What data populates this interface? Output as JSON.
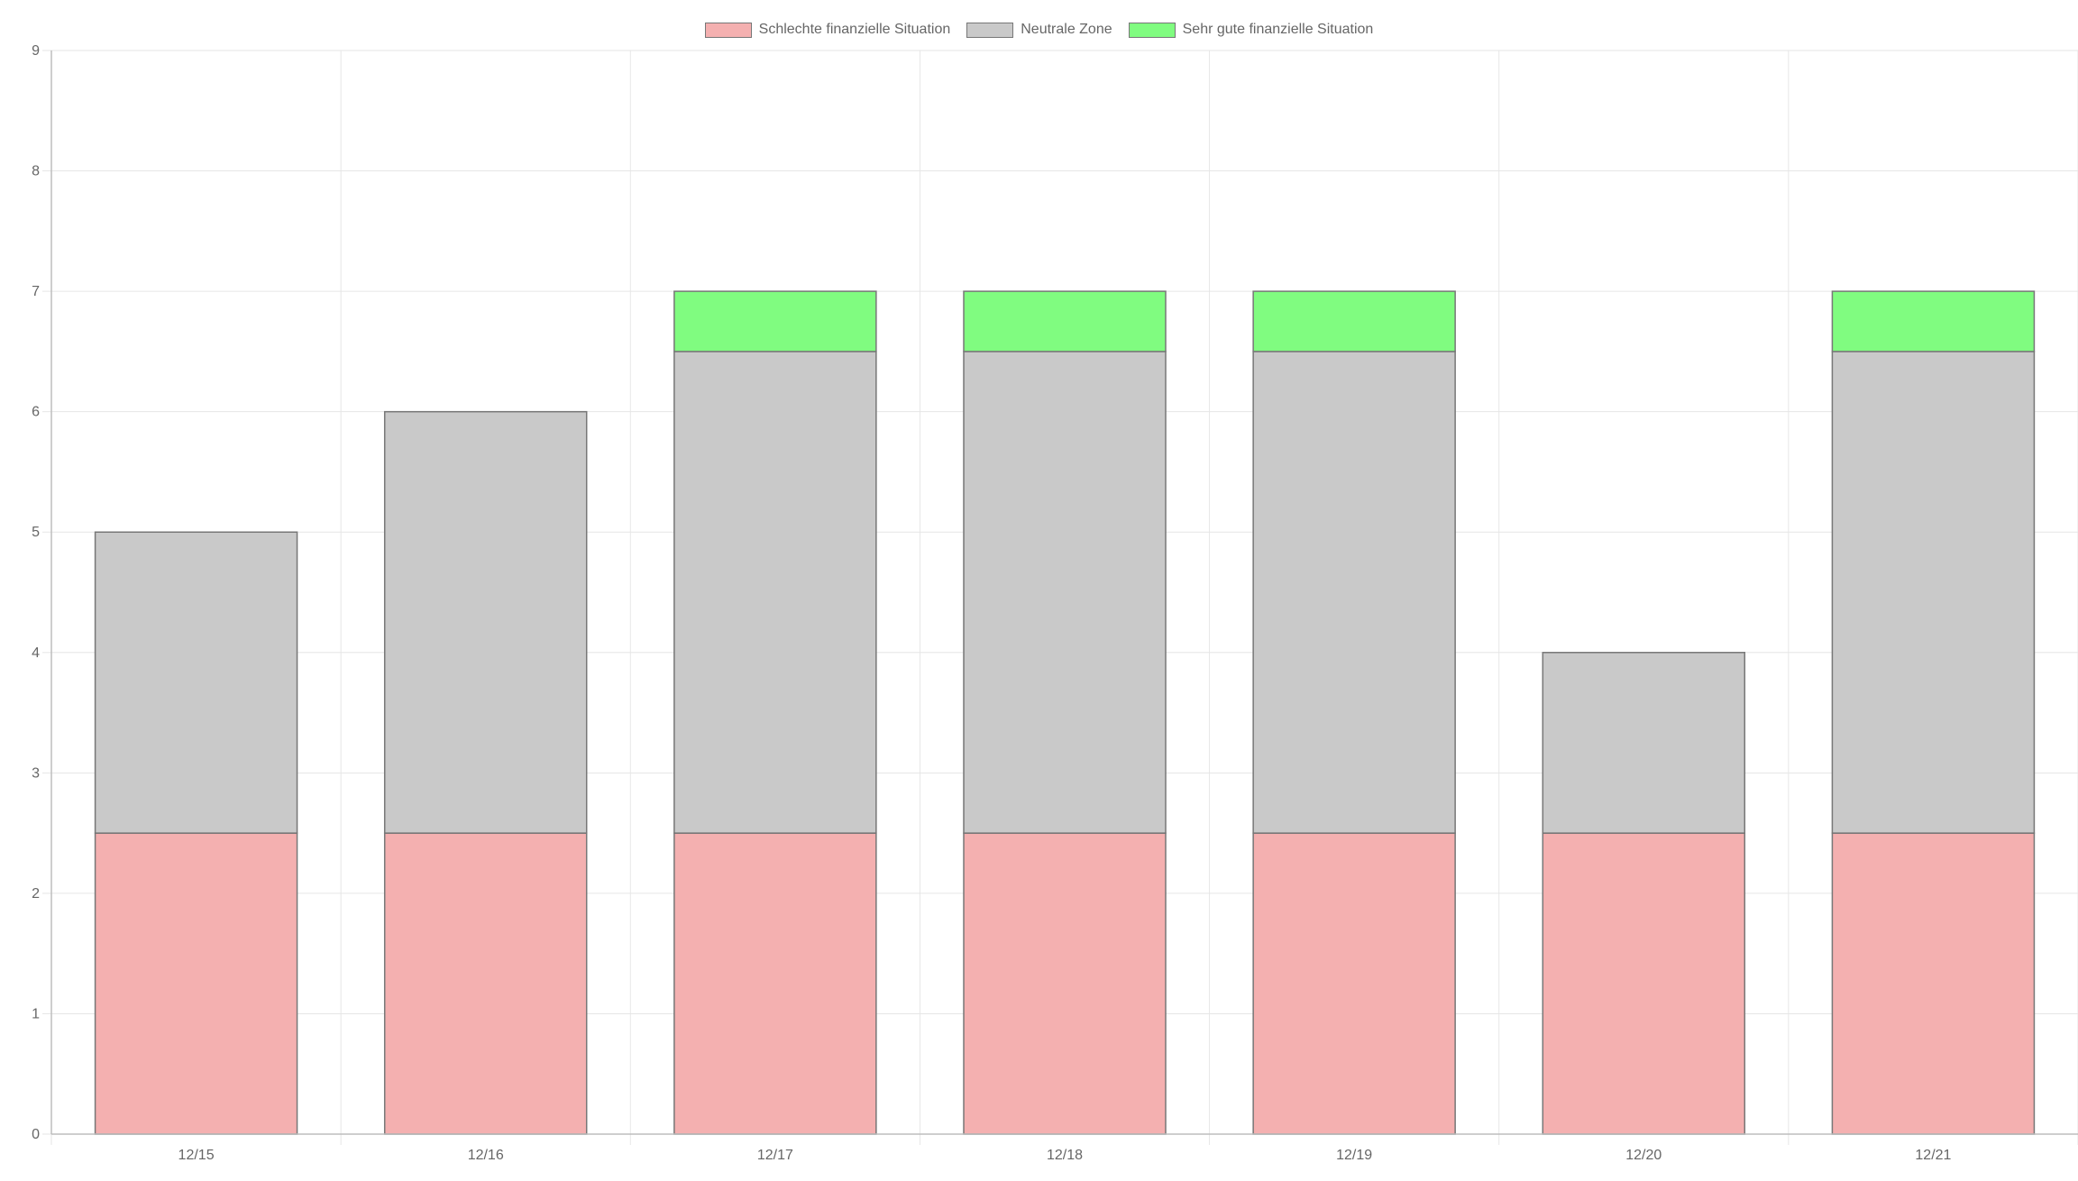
{
  "chart_data": {
    "type": "bar",
    "stacked": true,
    "title": "",
    "xlabel": "",
    "ylabel": "",
    "categories": [
      "12/15",
      "12/16",
      "12/17",
      "12/18",
      "12/19",
      "12/20",
      "12/21"
    ],
    "series": [
      {
        "name": "Schlechte finanzielle Situation",
        "color": "#f4b0b0",
        "values": [
          2.5,
          2.5,
          2.5,
          2.5,
          2.5,
          2.5,
          2.5
        ]
      },
      {
        "name": "Neutrale Zone",
        "color": "#c9c9c9",
        "values": [
          2.5,
          3.5,
          4,
          4,
          4,
          1.5,
          4
        ]
      },
      {
        "name": "Sehr gute finanzielle Situation",
        "color": "#80fc80",
        "values": [
          0,
          0,
          0.5,
          0.5,
          0.5,
          0,
          0.5
        ]
      }
    ],
    "ylim": [
      0,
      9
    ],
    "yticks": [
      "0",
      "1",
      "2",
      "3",
      "4",
      "5",
      "6",
      "7",
      "8",
      "9"
    ],
    "grid": true,
    "legend_position": "top-center",
    "border_color": "#777777",
    "grid_color": "#e6e6e6",
    "axis_color": "#bdbdbd"
  }
}
